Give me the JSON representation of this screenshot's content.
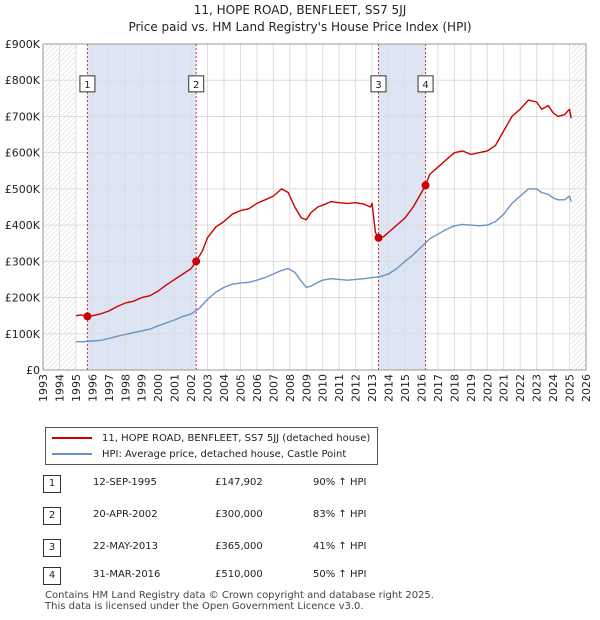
{
  "title_line1": "11, HOPE ROAD, BENFLEET, SS7 5JJ",
  "title_line2": "Price paid vs. HM Land Registry's House Price Index (HPI)",
  "colors": {
    "property": "#cc0000",
    "hpi": "#6a93c4",
    "band": "#dde4f4",
    "marker": "#cc0000",
    "grid": "#dddddd"
  },
  "chart_data": {
    "type": "line",
    "title": "Price paid vs. HM Land Registry's House Price Index (HPI)",
    "xlabel": "",
    "ylabel": "",
    "xlim": [
      1993,
      2026
    ],
    "ylim": [
      0,
      900000
    ],
    "y_ticks": [
      0,
      100000,
      200000,
      300000,
      400000,
      500000,
      600000,
      700000,
      800000,
      900000
    ],
    "y_tick_labels": [
      "£0",
      "£100K",
      "£200K",
      "£300K",
      "£400K",
      "£500K",
      "£600K",
      "£700K",
      "£800K",
      "£900K"
    ],
    "x_ticks": [
      1993,
      1994,
      1995,
      1996,
      1997,
      1998,
      1999,
      2000,
      2001,
      2002,
      2003,
      2004,
      2005,
      2006,
      2007,
      2008,
      2009,
      2010,
      2011,
      2012,
      2013,
      2014,
      2015,
      2016,
      2017,
      2018,
      2019,
      2020,
      2021,
      2022,
      2023,
      2024,
      2025,
      2026
    ],
    "x_tick_labels": [
      "1993",
      "1994",
      "1995",
      "1996",
      "1997",
      "1998",
      "1999",
      "2000",
      "2001",
      "2002",
      "2003",
      "2004",
      "2005",
      "2006",
      "2007",
      "2008",
      "2009",
      "2010",
      "2011",
      "2012",
      "2013",
      "2014",
      "2015",
      "2016",
      "2017",
      "2018",
      "2019",
      "2020",
      "2021",
      "2022",
      "2023",
      "2024",
      "2025",
      "2026"
    ],
    "series": [
      {
        "name": "11, HOPE ROAD, BENFLEET, SS7 5JJ (detached house)",
        "x": [
          1995.0,
          1995.3,
          1995.7,
          1996.0,
          1996.5,
          1997.0,
          1997.5,
          1998.0,
          1998.5,
          1999.0,
          1999.5,
          2000.0,
          2000.5,
          2001.0,
          2001.5,
          2002.0,
          2002.31,
          2002.7,
          2003.0,
          2003.5,
          2004.0,
          2004.5,
          2005.0,
          2005.5,
          2006.0,
          2006.5,
          2007.0,
          2007.5,
          2007.9,
          2008.3,
          2008.7,
          2009.0,
          2009.3,
          2009.7,
          2010.0,
          2010.5,
          2011.0,
          2011.5,
          2012.0,
          2012.5,
          2012.9,
          2013.0,
          2013.2,
          2013.39,
          2013.7,
          2014.0,
          2014.5,
          2015.0,
          2015.5,
          2016.0,
          2016.25,
          2016.5,
          2017.0,
          2017.5,
          2018.0,
          2018.5,
          2019.0,
          2019.5,
          2020.0,
          2020.5,
          2021.0,
          2021.5,
          2022.0,
          2022.5,
          2023.0,
          2023.3,
          2023.7,
          2024.0,
          2024.3,
          2024.7,
          2025.0,
          2025.1
        ],
        "values": [
          150000,
          152000,
          147902,
          150000,
          155000,
          163000,
          175000,
          185000,
          190000,
          200000,
          205000,
          218000,
          235000,
          250000,
          265000,
          280000,
          300000,
          330000,
          365000,
          395000,
          410000,
          430000,
          440000,
          445000,
          460000,
          470000,
          480000,
          500000,
          490000,
          450000,
          420000,
          415000,
          435000,
          450000,
          455000,
          465000,
          462000,
          460000,
          462000,
          458000,
          450000,
          460000,
          380000,
          365000,
          368000,
          380000,
          400000,
          420000,
          450000,
          490000,
          510000,
          540000,
          560000,
          580000,
          600000,
          605000,
          595000,
          600000,
          605000,
          620000,
          660000,
          700000,
          720000,
          745000,
          740000,
          720000,
          730000,
          710000,
          700000,
          705000,
          720000,
          695000
        ]
      },
      {
        "name": "HPI: Average price, detached house, Castle Point",
        "x": [
          1995.0,
          1995.5,
          1996.0,
          1996.5,
          1997.0,
          1997.5,
          1998.0,
          1998.5,
          1999.0,
          1999.5,
          2000.0,
          2000.5,
          2001.0,
          2001.5,
          2002.0,
          2002.5,
          2003.0,
          2003.5,
          2004.0,
          2004.5,
          2005.0,
          2005.5,
          2006.0,
          2006.5,
          2007.0,
          2007.5,
          2007.9,
          2008.3,
          2008.7,
          2009.0,
          2009.3,
          2009.7,
          2010.0,
          2010.5,
          2011.0,
          2011.5,
          2012.0,
          2012.5,
          2013.0,
          2013.5,
          2014.0,
          2014.5,
          2015.0,
          2015.5,
          2016.0,
          2016.5,
          2017.0,
          2017.5,
          2018.0,
          2018.5,
          2019.0,
          2019.5,
          2020.0,
          2020.5,
          2021.0,
          2021.5,
          2022.0,
          2022.5,
          2023.0,
          2023.3,
          2023.7,
          2024.0,
          2024.3,
          2024.7,
          2025.0,
          2025.1
        ],
        "values": [
          78000,
          78000,
          80000,
          82000,
          87000,
          93000,
          98000,
          103000,
          108000,
          113000,
          122000,
          130000,
          138000,
          148000,
          155000,
          170000,
          195000,
          215000,
          228000,
          237000,
          240000,
          242000,
          248000,
          255000,
          265000,
          275000,
          280000,
          270000,
          245000,
          228000,
          232000,
          242000,
          248000,
          252000,
          250000,
          248000,
          250000,
          252000,
          255000,
          258000,
          265000,
          280000,
          300000,
          318000,
          340000,
          362000,
          375000,
          388000,
          398000,
          402000,
          400000,
          398000,
          400000,
          410000,
          430000,
          460000,
          480000,
          500000,
          500000,
          490000,
          485000,
          475000,
          470000,
          470000,
          480000,
          465000
        ]
      }
    ],
    "transactions": [
      {
        "num": "1",
        "x": 1995.7,
        "value": 147902
      },
      {
        "num": "2",
        "x": 2002.31,
        "value": 300000
      },
      {
        "num": "3",
        "x": 2013.39,
        "value": 365000
      },
      {
        "num": "4",
        "x": 2016.25,
        "value": 510000
      }
    ],
    "annotation_label_y": 790000,
    "grey_bands": [
      [
        1993,
        1995.0
      ],
      [
        2025.1,
        2026
      ]
    ],
    "blue_bands": [
      [
        1995.7,
        2002.31
      ],
      [
        2013.39,
        2016.25
      ]
    ]
  },
  "legend": {
    "property_label": "11, HOPE ROAD, BENFLEET, SS7 5JJ (detached house)",
    "hpi_label": "HPI: Average price, detached house, Castle Point"
  },
  "transactions_table": [
    {
      "num": "1",
      "date": "12-SEP-1995",
      "price": "£147,902",
      "hpi": "90% ↑ HPI"
    },
    {
      "num": "2",
      "date": "20-APR-2002",
      "price": "£300,000",
      "hpi": "83% ↑ HPI"
    },
    {
      "num": "3",
      "date": "22-MAY-2013",
      "price": "£365,000",
      "hpi": "41% ↑ HPI"
    },
    {
      "num": "4",
      "date": "31-MAR-2016",
      "price": "£510,000",
      "hpi": "50% ↑ HPI"
    }
  ],
  "footer": {
    "line1": "Contains HM Land Registry data © Crown copyright and database right 2025.",
    "line2": "This data is licensed under the Open Government Licence v3.0."
  }
}
